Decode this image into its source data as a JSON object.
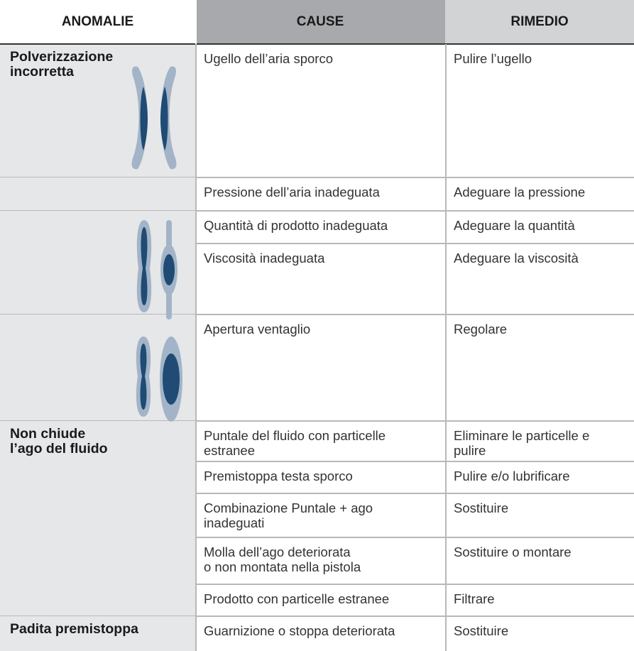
{
  "table": {
    "headers": [
      "ANOMALIE",
      "CAUSE",
      "RIMEDIO"
    ],
    "anomalies": [
      "Polverizzazione\nincorretta",
      "Non chiude\nl’ago del fluido",
      "Padita premistoppa"
    ],
    "rows": [
      [
        "Ugello dell’aria sporco",
        "Pulire l’ugello"
      ],
      [
        "Pressione dell’aria inadeguata",
        "Adeguare la pressione"
      ],
      [
        "Quantità di prodotto inadeguata",
        "Adeguare la quantità"
      ],
      [
        "Viscosità inadeguata",
        "Adeguare la viscosità"
      ],
      [
        "Apertura ventaglio",
        "Regolare"
      ],
      [
        "Puntale del fluido con particelle\nestranee",
        "Eliminare le particelle e\npulire"
      ],
      [
        "Premistoppa testa sporco",
        "Pulire e/o lubrificare"
      ],
      [
        "Combinazione Puntale + ago\ninadeguati",
        "Sostituire"
      ],
      [
        "Molla dell’ago deteriorata\no non montata nella pistola",
        "Sostituire o montare"
      ],
      [
        "Prodotto con particelle estranee",
        "Filtrare"
      ],
      [
        "Guarnizione o stoppa deteriorata",
        "Sostituire"
      ]
    ]
  }
}
